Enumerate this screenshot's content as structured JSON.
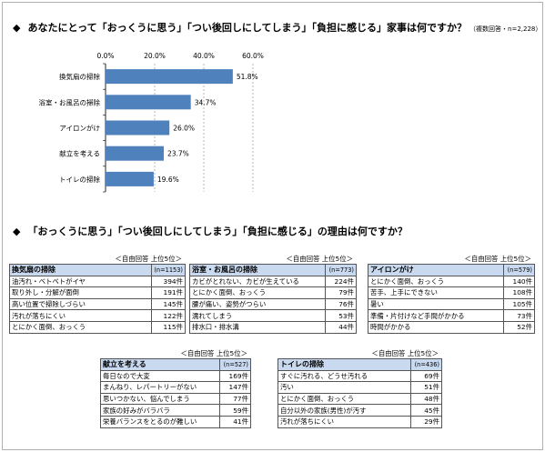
{
  "q1": {
    "bullet": "◆",
    "title": "あなたにとって「おっくうに思う」「つい後回しにしてしまう」「負担に感じる」家事は何ですか？",
    "note": "（複数回答・n=2,228）"
  },
  "q2": {
    "bullet": "◆",
    "title": "「おっくうに思う」「つい後回しにしてしまう」「負担に感じる」の理由は何ですか？"
  },
  "colors": {
    "bar": "#4f81bd",
    "grid": "#888888",
    "header_bg": "#c9d9ef"
  },
  "chart_data": {
    "type": "bar",
    "orientation": "horizontal",
    "categories": [
      "換気扇の掃除",
      "浴室・お風呂の掃除",
      "アイロンがけ",
      "献立を考える",
      "トイレの掃除"
    ],
    "values": [
      51.8,
      34.7,
      26.0,
      23.7,
      19.6
    ],
    "value_labels": [
      "51.8%",
      "34.7%",
      "26.0%",
      "23.7%",
      "19.6%"
    ],
    "xlim": [
      0,
      60
    ],
    "ticks": [
      0,
      20,
      40,
      60
    ],
    "tick_labels": [
      "0.0%",
      "20.0%",
      "40.0%",
      "60.0%"
    ],
    "grid": true
  },
  "tables": [
    {
      "caption": "＜自由回答 上位5位＞",
      "title": "換気扇の掃除",
      "n": "(n=1153)",
      "rows": [
        {
          "label": "油汚れ・ベトベトがイヤ",
          "count": "394件"
        },
        {
          "label": "取り外し・分解が面倒",
          "count": "191件"
        },
        {
          "label": "高い位置で掃除しづらい",
          "count": "145件"
        },
        {
          "label": "汚れが落ちにくい",
          "count": "122件"
        },
        {
          "label": "とにかく面倒、おっくう",
          "count": "115件"
        }
      ]
    },
    {
      "caption": "＜自由回答 上位5位＞",
      "title": "浴室・お風呂の掃除",
      "n": "(n=773)",
      "rows": [
        {
          "label": "カビがとれない、カビが生えている",
          "count": "224件"
        },
        {
          "label": "とにかく面倒、おっくう",
          "count": "79件"
        },
        {
          "label": "腰が痛い、姿勢がつらい",
          "count": "76件"
        },
        {
          "label": "濡れてしまう",
          "count": "53件"
        },
        {
          "label": "排水口・排水溝",
          "count": "44件"
        }
      ]
    },
    {
      "caption": "＜自由回答 上位5位＞",
      "title": "アイロンがけ",
      "n": "(n=579)",
      "rows": [
        {
          "label": "とにかく面倒、おっくう",
          "count": "140件"
        },
        {
          "label": "苦手、上手にできない",
          "count": "108件"
        },
        {
          "label": "暑い",
          "count": "105件"
        },
        {
          "label": "準備・片付けなど手間がかかる",
          "count": "73件"
        },
        {
          "label": "時間がかかる",
          "count": "52件"
        }
      ]
    },
    {
      "caption": "＜自由回答 上位5位＞",
      "title": "献立を考える",
      "n": "(n=527)",
      "rows": [
        {
          "label": "毎日なので大変",
          "count": "169件"
        },
        {
          "label": "まんねり、レパートリーがない",
          "count": "147件"
        },
        {
          "label": "思いつかない、悩んでしまう",
          "count": "77件"
        },
        {
          "label": "家族の好みがバラバラ",
          "count": "59件"
        },
        {
          "label": "栄養バランスをとるのが難しい",
          "count": "41件"
        }
      ]
    },
    {
      "caption": "＜自由回答 上位5位＞",
      "title": "トイレの掃除",
      "n": "(n=436)",
      "rows": [
        {
          "label": "すぐに汚れる、どうせ汚れる",
          "count": "69件"
        },
        {
          "label": "汚い",
          "count": "51件"
        },
        {
          "label": "とにかく面倒、おっくう",
          "count": "48件"
        },
        {
          "label": "自分以外の家族(男性)が汚す",
          "count": "45件"
        },
        {
          "label": "汚れが落ちにくい",
          "count": "29件"
        }
      ]
    }
  ]
}
